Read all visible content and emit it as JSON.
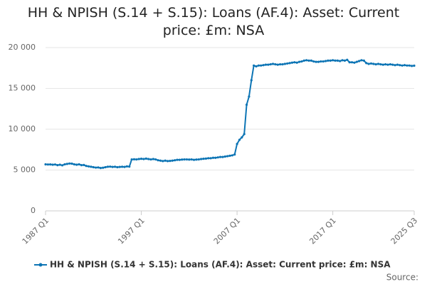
{
  "chart_data": {
    "type": "line",
    "title": "HH & NPISH (S.14 + S.15): Loans (AF.4): Asset: Current price: £m: NSA",
    "source": "Source:",
    "categories": [
      "1987 Q1",
      null,
      null,
      null,
      null,
      null,
      null,
      null,
      null,
      null,
      null,
      null,
      null,
      null,
      null,
      null,
      null,
      null,
      null,
      null,
      null,
      null,
      null,
      null,
      null,
      null,
      null,
      null,
      null,
      null,
      null,
      null,
      null,
      null,
      null,
      null,
      null,
      null,
      null,
      null,
      "1997 Q1",
      null,
      null,
      null,
      null,
      null,
      null,
      null,
      null,
      null,
      null,
      null,
      null,
      null,
      null,
      null,
      null,
      null,
      null,
      null,
      null,
      null,
      null,
      null,
      null,
      null,
      null,
      null,
      null,
      null,
      null,
      null,
      null,
      null,
      null,
      null,
      null,
      null,
      null,
      null,
      "2007 Q1",
      null,
      null,
      null,
      null,
      null,
      null,
      null,
      null,
      null,
      null,
      null,
      null,
      null,
      null,
      null,
      null,
      null,
      null,
      null,
      null,
      null,
      null,
      null,
      null,
      null,
      null,
      null,
      null,
      null,
      null,
      null,
      null,
      null,
      null,
      null,
      null,
      null,
      null,
      null,
      "2017 Q1",
      null,
      null,
      null,
      null,
      null,
      null,
      null,
      null,
      null,
      null,
      null,
      null,
      null,
      null,
      null,
      null,
      null,
      null,
      null,
      null,
      null,
      null,
      null,
      null,
      null,
      null,
      null,
      null,
      null,
      null,
      null,
      null,
      null,
      "2025 Q3"
    ],
    "series": [
      {
        "name": "HH & NPISH (S.14 + S.15): Loans (AF.4): Asset: Current price: £m: NSA",
        "color": "#0d75b5",
        "values": [
          5700,
          5680,
          5690,
          5650,
          5680,
          5600,
          5650,
          5580,
          5700,
          5750,
          5800,
          5780,
          5700,
          5650,
          5700,
          5600,
          5620,
          5500,
          5450,
          5400,
          5350,
          5300,
          5320,
          5250,
          5280,
          5350,
          5400,
          5420,
          5380,
          5400,
          5350,
          5380,
          5400,
          5380,
          5450,
          5420,
          6300,
          6320,
          6300,
          6350,
          6380,
          6350,
          6400,
          6350,
          6300,
          6350,
          6300,
          6200,
          6150,
          6100,
          6150,
          6100,
          6120,
          6150,
          6200,
          6250,
          6250,
          6280,
          6300,
          6300,
          6280,
          6300,
          6250,
          6280,
          6300,
          6350,
          6380,
          6400,
          6450,
          6450,
          6500,
          6500,
          6550,
          6600,
          6600,
          6650,
          6700,
          6750,
          6800,
          6900,
          8200,
          8700,
          9000,
          9400,
          13000,
          14000,
          16000,
          17800,
          17700,
          17800,
          17800,
          17850,
          17900,
          17900,
          17950,
          18000,
          17950,
          17900,
          17950,
          17950,
          18000,
          18050,
          18100,
          18150,
          18200,
          18150,
          18250,
          18300,
          18400,
          18450,
          18400,
          18400,
          18300,
          18250,
          18250,
          18300,
          18300,
          18350,
          18400,
          18400,
          18450,
          18400,
          18400,
          18350,
          18450,
          18400,
          18500,
          18200,
          18200,
          18150,
          18250,
          18350,
          18450,
          18400,
          18100,
          18000,
          18050,
          18000,
          17950,
          18000,
          17950,
          17900,
          17950,
          17900,
          17950,
          17900,
          17850,
          17900,
          17850,
          17800,
          17850,
          17800,
          17800,
          17750,
          17780
        ]
      }
    ],
    "ylim": [
      0,
      20000
    ],
    "yticks": [
      0,
      {
        "value": 5000,
        "label": "5 000"
      },
      {
        "value": 10000,
        "label": "10 000"
      },
      {
        "value": 15000,
        "label": "15 000"
      },
      {
        "value": 20000,
        "label": "20 000"
      }
    ],
    "grid": true
  }
}
